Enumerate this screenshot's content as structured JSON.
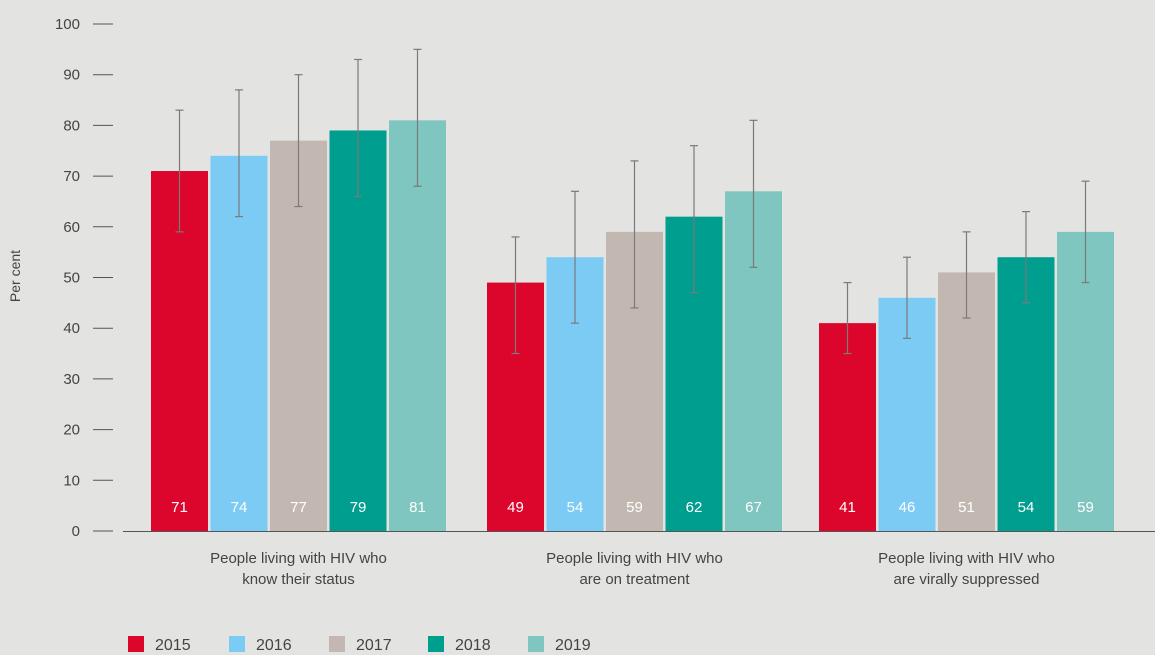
{
  "chart_data": {
    "type": "bar",
    "ylabel": "Per cent",
    "ylim": [
      0,
      100
    ],
    "yticks": [
      0,
      10,
      20,
      30,
      40,
      50,
      60,
      70,
      80,
      90,
      100
    ],
    "grid": false,
    "legend_placement": "bottom-left",
    "categories": [
      [
        "People living with HIV who",
        "know their status"
      ],
      [
        "People living with HIV who",
        "are on treatment"
      ],
      [
        "People living with HIV who",
        "are virally suppressed"
      ]
    ],
    "series": [
      {
        "name": "2015",
        "color": "#dc052b",
        "values": [
          71,
          49,
          41
        ],
        "error_low": [
          59,
          35,
          35
        ],
        "error_high": [
          83,
          58,
          49
        ]
      },
      {
        "name": "2016",
        "color": "#7bcbf5",
        "values": [
          74,
          54,
          46
        ],
        "error_low": [
          62,
          41,
          38
        ],
        "error_high": [
          87,
          67,
          54
        ]
      },
      {
        "name": "2017",
        "color": "#c2b8b1",
        "values": [
          77,
          59,
          51
        ],
        "error_low": [
          64,
          44,
          42
        ],
        "error_high": [
          90,
          73,
          59
        ]
      },
      {
        "name": "2018",
        "color": "#009e8e",
        "values": [
          79,
          62,
          54
        ],
        "error_low": [
          66,
          47,
          45
        ],
        "error_high": [
          93,
          76,
          63
        ]
      },
      {
        "name": "2019",
        "color": "#7fc6c1",
        "values": [
          81,
          67,
          59
        ],
        "error_low": [
          68,
          52,
          49
        ],
        "error_high": [
          95,
          81,
          69
        ]
      }
    ]
  }
}
